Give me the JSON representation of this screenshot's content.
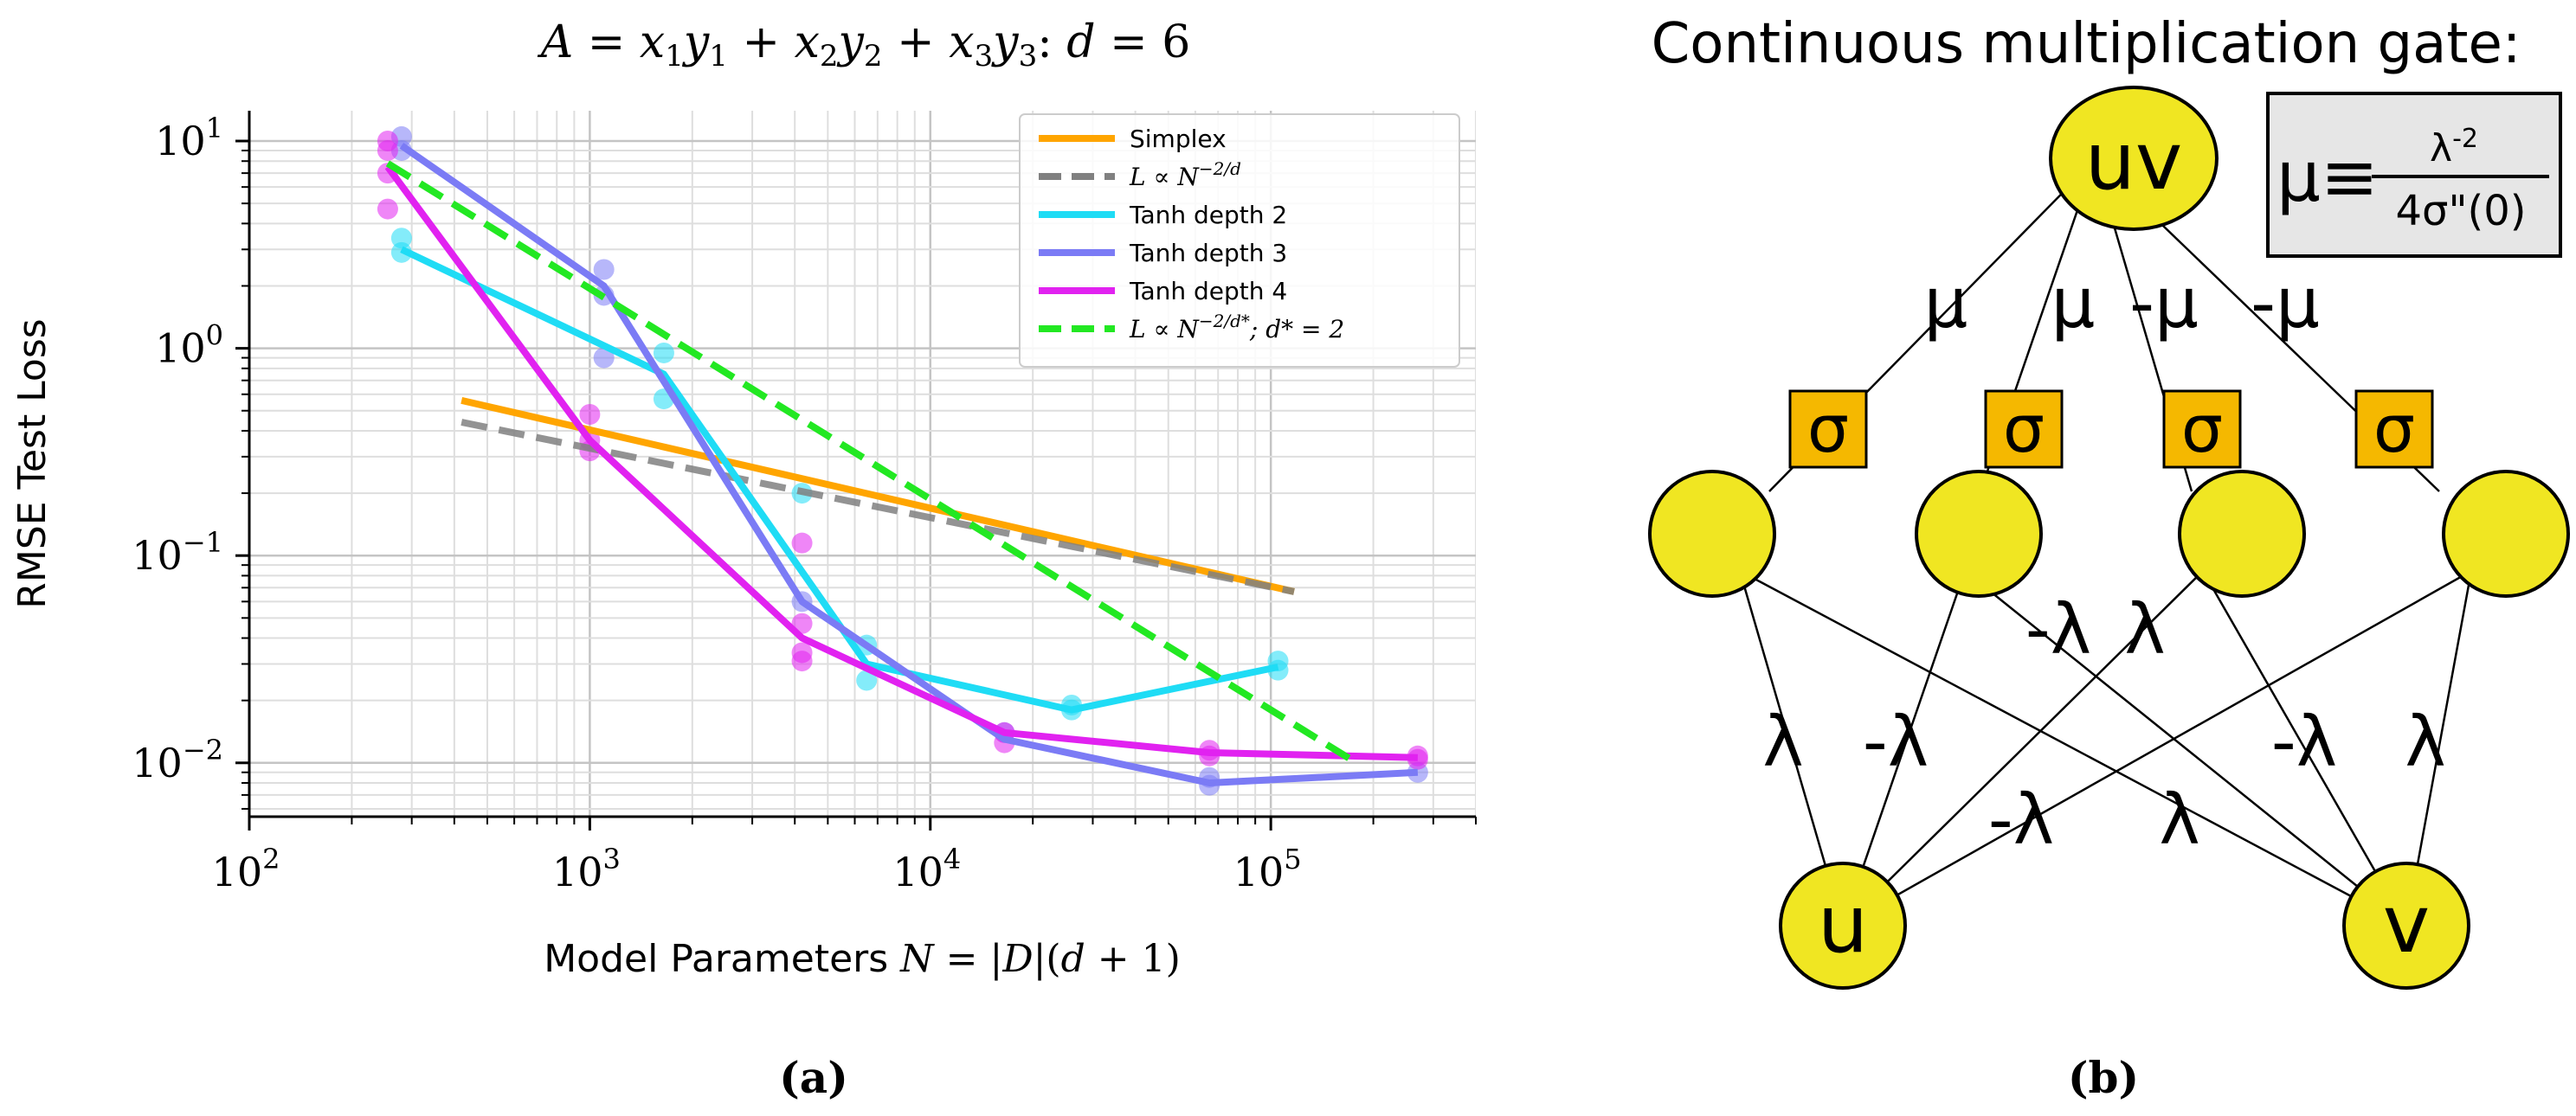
{
  "chart_data": [
    {
      "type": "line",
      "panel_label": "(a)",
      "title": "A = x1y1 + x2y2 + x3y3: d = 6",
      "xlabel": "Model Parameters N = |D|(d + 1)",
      "ylabel": "RMSE Test Loss",
      "xscale": "log",
      "yscale": "log",
      "xlim": [
        100,
        400000
      ],
      "ylim": [
        0.0055,
        14
      ],
      "x_ticks": [
        {
          "value": 100,
          "base": "10",
          "exp": "2"
        },
        {
          "value": 1000,
          "base": "10",
          "exp": "3"
        },
        {
          "value": 10000,
          "base": "10",
          "exp": "4"
        },
        {
          "value": 100000,
          "base": "10",
          "exp": "5"
        }
      ],
      "y_ticks": [
        {
          "value": 0.01,
          "base": "10",
          "exp": "−2"
        },
        {
          "value": 0.1,
          "base": "10",
          "exp": "−1"
        },
        {
          "value": 1,
          "base": "10",
          "exp": "0"
        },
        {
          "value": 10,
          "base": "10",
          "exp": "1"
        }
      ],
      "grid": true,
      "legend_position": "top-right",
      "series": [
        {
          "name": "Simplex",
          "label_parts": [
            "Simplex"
          ],
          "color": "#ffa500",
          "dash": "solid",
          "x": [
            420,
            117000
          ],
          "y": [
            0.56,
            0.067
          ]
        },
        {
          "name": "L ∝ N^(−2/d)",
          "label_parts": [
            "L ∝ N",
            "−2/d",
            ""
          ],
          "color": "#808080",
          "dash": "dashed",
          "x": [
            420,
            117000
          ],
          "y": [
            0.44,
            0.067
          ]
        },
        {
          "name": "Tanh depth 2",
          "label_parts": [
            "Tanh depth 2"
          ],
          "color": "#1fdcf5",
          "dash": "solid",
          "x": [
            280,
            1650,
            6500,
            26000,
            105000
          ],
          "y": [
            3.0,
            0.75,
            0.03,
            0.018,
            0.029
          ],
          "scatter_x": [
            280,
            280,
            1650,
            1650,
            4200,
            6500,
            6500,
            26000,
            26000,
            105000,
            105000
          ],
          "scatter_y": [
            3.4,
            2.9,
            0.95,
            0.57,
            0.2,
            0.037,
            0.025,
            0.019,
            0.018,
            0.031,
            0.028
          ]
        },
        {
          "name": "Tanh depth 3",
          "label_parts": [
            "Tanh depth 3"
          ],
          "color": "#7b7bf5",
          "dash": "solid",
          "x": [
            280,
            1100,
            4200,
            16500,
            66000,
            270000
          ],
          "y": [
            9.5,
            2.0,
            0.06,
            0.013,
            0.008,
            0.009
          ],
          "scatter_x": [
            280,
            280,
            1100,
            1100,
            1100,
            4200,
            16500,
            66000,
            66000,
            270000
          ],
          "scatter_y": [
            10.5,
            9.0,
            2.4,
            1.8,
            0.9,
            0.06,
            0.014,
            0.0085,
            0.0078,
            0.009
          ]
        },
        {
          "name": "Tanh depth 4",
          "label_parts": [
            "Tanh depth 4"
          ],
          "color": "#e122f0",
          "dash": "solid",
          "x": [
            255,
            1000,
            4200,
            16500,
            66000,
            270000
          ],
          "y": [
            7.5,
            0.36,
            0.04,
            0.014,
            0.0112,
            0.0106
          ],
          "scatter_x": [
            255,
            255,
            255,
            255,
            1000,
            1000,
            1000,
            4200,
            4200,
            4200,
            4200,
            16500,
            16500,
            66000,
            66000,
            270000,
            270000
          ],
          "scatter_y": [
            10,
            9,
            7,
            4.7,
            0.48,
            0.36,
            0.32,
            0.115,
            0.047,
            0.034,
            0.031,
            0.014,
            0.0125,
            0.0115,
            0.0108,
            0.0108,
            0.0104
          ]
        },
        {
          "name": "L ∝ N^(−2/d*); d* = 2",
          "label_parts": [
            "L ∝ N",
            "−2/d*",
            "; d* = 2"
          ],
          "color": "#22e822",
          "dash": "dashed",
          "x": [
            255,
            170000
          ],
          "y": [
            7.8,
            0.0105
          ]
        }
      ]
    },
    {
      "type": "diagram",
      "panel_label": "(b)",
      "title": "Continuous multiplication gate:",
      "formula": {
        "lhs": "μ≡",
        "numerator_base": "λ",
        "numerator_exp": "-2",
        "denominator": "4σ\"(0)"
      },
      "nodes": {
        "output": "uv",
        "hidden": [
          "",
          "",
          "",
          ""
        ],
        "activation": "σ",
        "inputs": [
          "u",
          "v"
        ]
      },
      "top_weights": [
        "μ",
        "μ",
        "-μ",
        "-μ"
      ],
      "bottom_weights": [
        "λ",
        "-λ",
        "-λ",
        "λ",
        "-λ",
        "λ",
        "-λ",
        "λ"
      ],
      "node_color": "#f0e622",
      "activation_color": "#f5b800"
    }
  ]
}
